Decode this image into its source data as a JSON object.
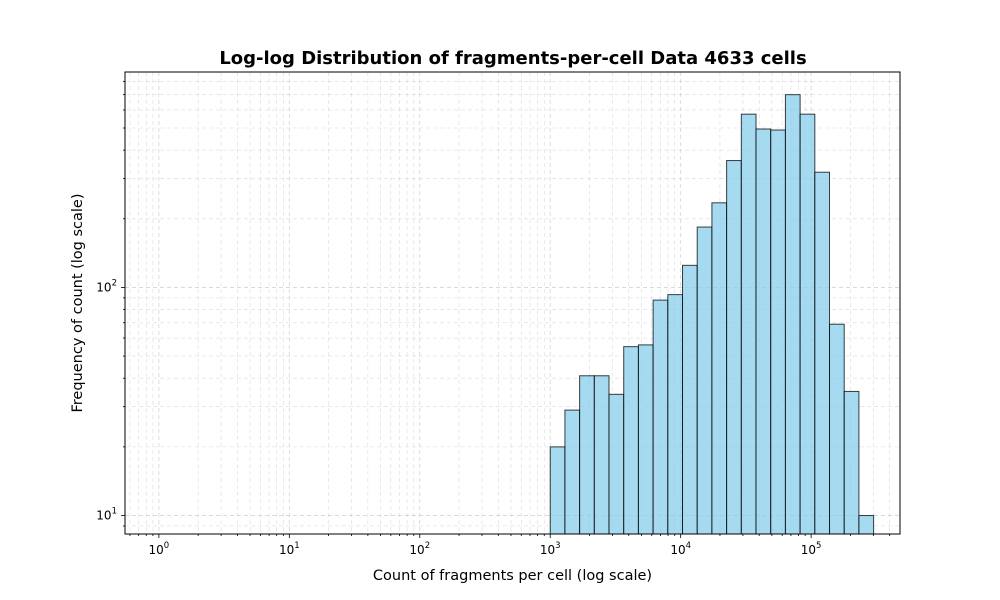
{
  "chart_data": {
    "type": "bar",
    "title": "Log-log Distribution of fragments-per-cell Data 4633 cells",
    "xlabel": "Count of fragments per cell (log scale)",
    "ylabel": "Frequency of count (log scale)",
    "xscale": "log",
    "yscale": "log",
    "xlim": [
      0.55,
      480000
    ],
    "ylim": [
      8.3,
      880
    ],
    "grid": true,
    "bar_color": "#87ceeb",
    "edge_color": "#000000",
    "x_ticks": [
      {
        "base": "10",
        "exp": "0",
        "value": 1
      },
      {
        "base": "10",
        "exp": "1",
        "value": 10
      },
      {
        "base": "10",
        "exp": "2",
        "value": 100
      },
      {
        "base": "10",
        "exp": "3",
        "value": 1000
      },
      {
        "base": "10",
        "exp": "4",
        "value": 10000
      },
      {
        "base": "10",
        "exp": "5",
        "value": 100000
      }
    ],
    "y_ticks": [
      {
        "base": "10",
        "exp": "1",
        "value": 10
      },
      {
        "base": "10",
        "exp": "2",
        "value": 100
      }
    ],
    "bin_edges": [
      1000,
      1296,
      1680,
      2178,
      2823,
      3659,
      4743,
      6148,
      7969,
      10330,
      13390,
      17357,
      22499,
      29164,
      37803,
      49001,
      63517,
      82333,
      106723,
      138339,
      179321,
      232441,
      301296
    ],
    "values": [
      20,
      29,
      41,
      41,
      34,
      55,
      56,
      88,
      93,
      125,
      184,
      235,
      360,
      575,
      495,
      490,
      700,
      575,
      320,
      69,
      35,
      10
    ]
  }
}
